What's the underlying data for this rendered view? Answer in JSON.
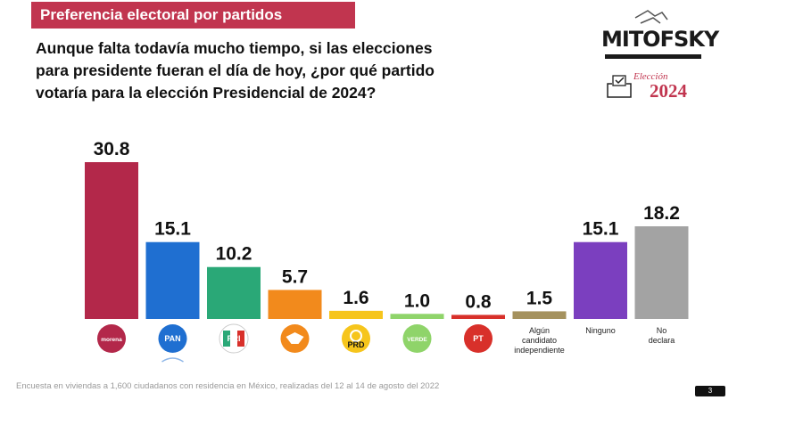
{
  "header": {
    "banner_title": "Preferencia electoral por partidos",
    "question_lines": [
      "Aunque falta todavía mucho tiempo, si las elecciones",
      "para presidente fueran el día de hoy, ¿por qué partido",
      "votaría para la elección Presidencial de 2024?"
    ]
  },
  "logo": {
    "name": "MITOFSKY",
    "election_label": "Elección",
    "year": "2024",
    "icon": "ballot-box-icon"
  },
  "chart_data": {
    "type": "bar",
    "title": "Preferencia electoral por partidos",
    "xlabel": "",
    "ylabel": "",
    "ylim": [
      0,
      32
    ],
    "grid": false,
    "legend": "none",
    "categories": [
      "MORENA",
      "PAN",
      "PRI",
      "MC",
      "PRD",
      "VERDE",
      "PT",
      "Algún candidato independiente",
      "Ninguno",
      "No declara"
    ],
    "values": [
      30.8,
      15.1,
      10.2,
      5.7,
      1.6,
      1.0,
      0.8,
      1.5,
      15.1,
      18.2
    ],
    "value_labels": [
      "30.8",
      "15.1",
      "10.2",
      "5.7",
      "1.6",
      "1.0",
      "0.8",
      "1.5",
      "15.1",
      "18.2"
    ],
    "colors": [
      "#b3284a",
      "#1f6fd1",
      "#2aa877",
      "#f28a1c",
      "#f6c51c",
      "#8fd46a",
      "#d8302a",
      "#a5925e",
      "#7b3fbf",
      "#a3a3a3"
    ],
    "logo_labels": [
      "morena",
      "PAN",
      "PRI",
      "",
      "PRD",
      "VERDE",
      "PT",
      "",
      "",
      ""
    ],
    "text_labels": [
      [],
      [],
      [],
      [],
      [],
      [],
      [],
      [
        "Algún",
        "candidato",
        "independiente"
      ],
      [
        "Ninguno"
      ],
      [
        "No",
        "declara"
      ]
    ],
    "icons": [
      "morena-logo-icon",
      "pan-logo-icon",
      "pri-logo-icon",
      "mc-eagle-logo-icon",
      "prd-sun-logo-icon",
      "verde-logo-icon",
      "pt-star-logo-icon",
      "",
      "",
      ""
    ]
  },
  "footer": {
    "note": "Encuesta en viviendas a 1,600 ciudadanos con residencia en México, realizadas del 12 al 14 de agosto del 2022",
    "page_number": "3"
  }
}
